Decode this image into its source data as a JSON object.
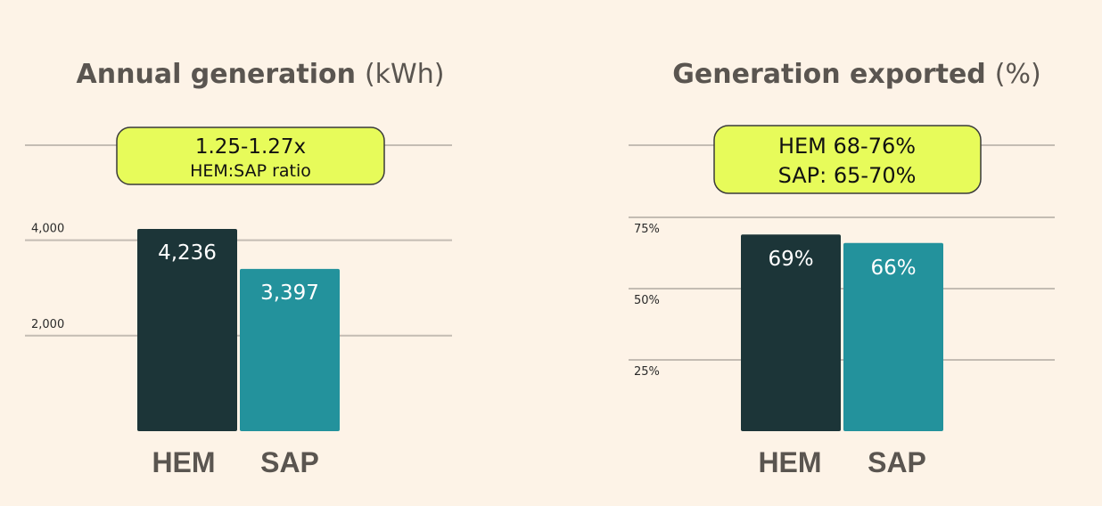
{
  "colors": {
    "background": "#fdf3e7",
    "hem_bar": "#1c3538",
    "sap_bar": "#23929c",
    "callout_fill": "#e7fb5a",
    "gridline": "#c4bcb3",
    "title_text": "#5a5550"
  },
  "chart_data": [
    {
      "type": "bar",
      "title": "Annual generation",
      "unit": "(kWh)",
      "categories": [
        "HEM",
        "SAP"
      ],
      "values": [
        4236,
        3397
      ],
      "value_labels": [
        "4,236",
        "3,397"
      ],
      "yticks": [
        2000,
        4000
      ],
      "ytick_labels": [
        "2,000",
        "4,000"
      ],
      "ylim": [
        0,
        6000
      ],
      "grid": true,
      "callout": {
        "line1": "1.25-1.27x",
        "line2": "HEM:SAP ratio"
      }
    },
    {
      "type": "bar",
      "title": "Generation exported",
      "unit": "(%)",
      "categories": [
        "HEM",
        "SAP"
      ],
      "values": [
        69,
        66
      ],
      "value_labels": [
        "69%",
        "66%"
      ],
      "yticks": [
        25,
        50,
        75
      ],
      "ytick_labels": [
        "25%",
        "50%",
        "75%"
      ],
      "ylim": [
        0,
        100
      ],
      "grid": true,
      "callout": {
        "line1": "HEM 68-76%",
        "line2": "SAP: 65-70%"
      }
    }
  ]
}
